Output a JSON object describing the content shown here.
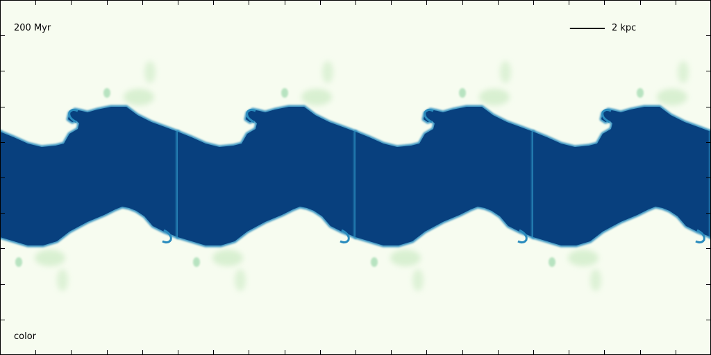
{
  "chart_data": {
    "type": "heatmap",
    "time_label": "200 Myr",
    "field_label": "color",
    "colormap": "GnBu",
    "colors": {
      "background": "#f7fcf0",
      "dense": "#08407e",
      "edge": "#2b8cbe",
      "mixing": "#a8ddb5",
      "mixing_light": "#ccebc5",
      "axes": "#000000"
    },
    "scalebar": {
      "label": "2 kpc",
      "length_kpc": 2
    },
    "domain_kpc": {
      "x": [
        0,
        20
      ],
      "y": [
        0,
        10
      ]
    },
    "instability": {
      "type": "Kelvin-Helmholtz",
      "wave_count": 4,
      "wavelength_kpc": 5,
      "layer_center_kpc": 5
    },
    "ticks": {
      "x_count": 19,
      "y_count": 9,
      "direction": "in",
      "tick_labels": false
    }
  }
}
